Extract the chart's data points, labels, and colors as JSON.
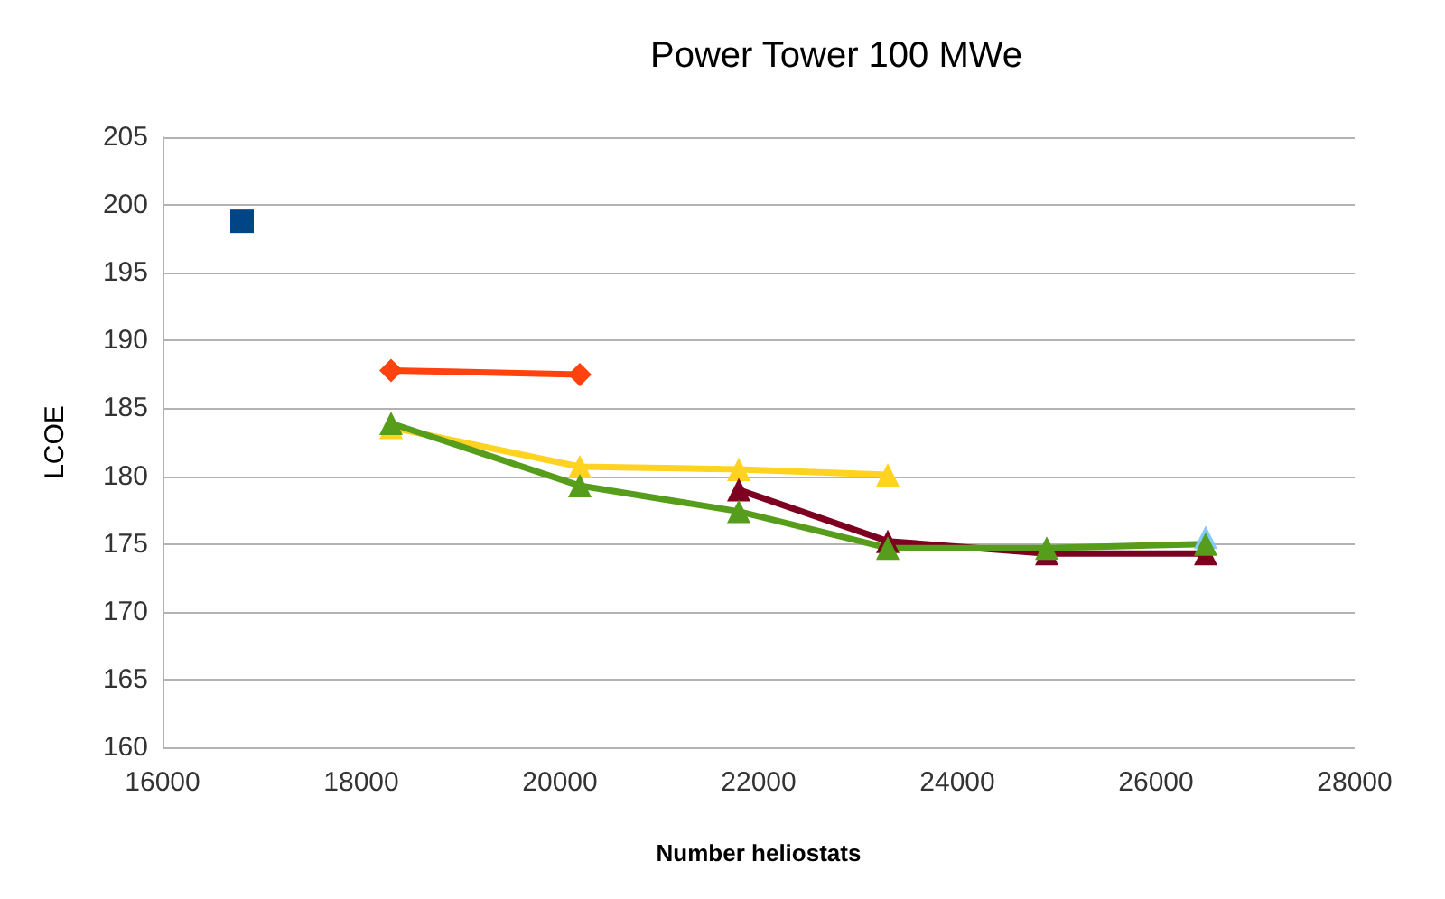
{
  "chart_data": {
    "type": "line",
    "title": "Power Tower 100 MWe",
    "xlabel": "Number heliostats",
    "ylabel": "LCOE",
    "xlim": [
      16000,
      28000
    ],
    "xticks": [
      16000,
      18000,
      20000,
      22000,
      24000,
      26000,
      28000
    ],
    "ylim": [
      160,
      205
    ],
    "yticks": [
      160,
      165,
      170,
      175,
      180,
      185,
      190,
      195,
      200,
      205
    ],
    "grid": "y",
    "series": [
      {
        "color": "#004586",
        "marker": "square",
        "x": [
          16800
        ],
        "values": [
          198.8
        ]
      },
      {
        "color": "#ff420e",
        "marker": "diamond",
        "x": [
          18300,
          20200
        ],
        "values": [
          187.8,
          187.5
        ]
      },
      {
        "color": "#ffd320",
        "marker": "triangle",
        "x": [
          18300,
          20200,
          21800,
          23300
        ],
        "values": [
          183.6,
          180.7,
          180.5,
          180.1
        ]
      },
      {
        "color": "#7e0021",
        "marker": "triangle",
        "x": [
          21800,
          23300,
          24900,
          26500
        ],
        "values": [
          179.0,
          175.2,
          174.3,
          174.3
        ]
      },
      {
        "color": "#83caff",
        "marker": "triangle",
        "x": [
          26500
        ],
        "values": [
          175.5
        ]
      },
      {
        "color": "#579d1c",
        "marker": "triangle",
        "x": [
          18300,
          20200,
          21800,
          23300,
          24900,
          26500
        ],
        "values": [
          183.9,
          179.3,
          177.4,
          174.7,
          174.7,
          175.0
        ]
      }
    ]
  }
}
